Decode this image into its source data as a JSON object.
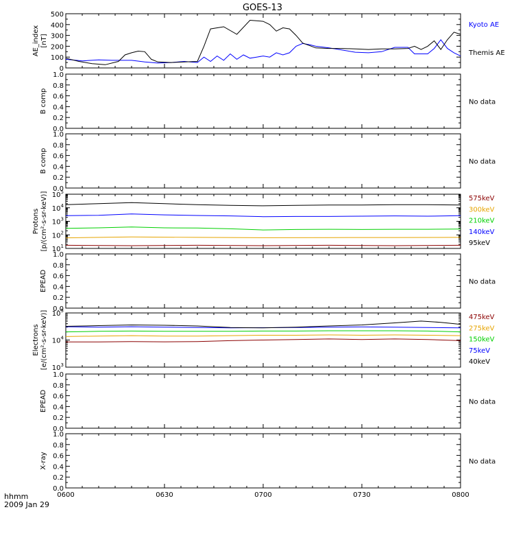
{
  "title": "GOES-13",
  "time_axis": {
    "ticks": [
      "0600",
      "0630",
      "0700",
      "0730",
      "0800"
    ],
    "footer_label": "hhmm",
    "date_label": "2009 Jan 29"
  },
  "no_data_label": "No data",
  "chart_data": [
    {
      "type": "line",
      "ylabel_lines": [
        "AE_index",
        "[nT]"
      ],
      "y_ticks": [
        "0",
        "100",
        "200",
        "300",
        "400",
        "500"
      ],
      "ylim": [
        0,
        500
      ],
      "xlim_minutes": [
        0,
        120
      ],
      "series": [
        {
          "name": "Kyoto AE",
          "color": "#0000ff",
          "x": [
            0,
            5,
            10,
            14,
            20,
            24,
            28,
            32,
            36,
            40,
            42,
            44,
            46,
            48,
            50,
            52,
            54,
            56,
            58,
            60,
            62,
            64,
            66,
            68,
            70,
            72,
            74,
            76,
            80,
            84,
            88,
            92,
            96,
            100,
            104,
            106,
            110,
            112,
            114,
            116,
            118,
            120
          ],
          "y": [
            80,
            65,
            75,
            70,
            70,
            55,
            45,
            50,
            60,
            50,
            100,
            60,
            110,
            70,
            130,
            80,
            120,
            90,
            100,
            110,
            100,
            140,
            120,
            140,
            200,
            225,
            215,
            200,
            185,
            165,
            145,
            140,
            150,
            190,
            190,
            130,
            130,
            180,
            260,
            180,
            140,
            110
          ]
        },
        {
          "name": "Themis AE",
          "color": "#000000",
          "x": [
            0,
            4,
            8,
            12,
            16,
            18,
            20,
            22,
            24,
            26,
            28,
            32,
            36,
            40,
            42,
            44,
            48,
            52,
            56,
            60,
            62,
            64,
            66,
            68,
            70,
            72,
            76,
            80,
            84,
            88,
            92,
            96,
            100,
            104,
            106,
            108,
            110,
            112,
            114,
            116,
            118,
            120
          ],
          "y": [
            90,
            60,
            40,
            30,
            60,
            120,
            140,
            155,
            150,
            80,
            55,
            50,
            55,
            60,
            200,
            360,
            380,
            310,
            440,
            430,
            400,
            340,
            370,
            360,
            300,
            230,
            185,
            180,
            180,
            175,
            170,
            175,
            175,
            180,
            200,
            170,
            200,
            250,
            170,
            260,
            330,
            310
          ]
        }
      ]
    },
    {
      "type": "empty",
      "ylabel_lines": [
        "B comp"
      ],
      "y_ticks": [
        "0.0",
        "0.2",
        "0.4",
        "0.6",
        "0.8",
        "1.0"
      ],
      "ylim": [
        0,
        1
      ]
    },
    {
      "type": "empty",
      "ylabel_lines": [
        "B comp"
      ],
      "y_ticks": [
        "0.0",
        "0.2",
        "0.4",
        "0.6",
        "0.8",
        "1.0"
      ],
      "ylim": [
        0,
        1
      ]
    },
    {
      "type": "line",
      "log_scale": true,
      "ylabel_lines": [
        "Protons",
        "[p/(cm²-s-sr-keV)]"
      ],
      "y_ticks_exponents": [
        1,
        2,
        3,
        4,
        5
      ],
      "ylim": [
        10,
        100000
      ],
      "xlim_minutes": [
        0,
        120
      ],
      "series": [
        {
          "name": "575keV",
          "color": "#8b0000",
          "x": [
            0,
            20,
            40,
            60,
            80,
            100,
            120
          ],
          "y": [
            17,
            16,
            17,
            16,
            17,
            16,
            17
          ]
        },
        {
          "name": "300keV",
          "color": "#e6a400",
          "x": [
            0,
            20,
            40,
            60,
            80,
            100,
            120
          ],
          "y": [
            60,
            70,
            65,
            62,
            63,
            64,
            65
          ]
        },
        {
          "name": "210keV",
          "color": "#00d000",
          "x": [
            0,
            10,
            20,
            30,
            40,
            50,
            60,
            70,
            80,
            90,
            100,
            110,
            120
          ],
          "y": [
            300,
            330,
            380,
            330,
            320,
            280,
            230,
            250,
            260,
            250,
            260,
            260,
            270
          ]
        },
        {
          "name": "140keV",
          "color": "#0000ff",
          "x": [
            0,
            10,
            20,
            30,
            40,
            50,
            60,
            70,
            80,
            90,
            100,
            110,
            120
          ],
          "y": [
            2600,
            2800,
            3500,
            3000,
            2700,
            2500,
            2200,
            2300,
            2300,
            2400,
            2500,
            2400,
            2600
          ]
        },
        {
          "name": "95keV",
          "color": "#000000",
          "x": [
            0,
            10,
            20,
            30,
            40,
            50,
            60,
            70,
            80,
            90,
            100,
            110,
            120
          ],
          "y": [
            17000,
            20000,
            24000,
            20000,
            17000,
            15000,
            14000,
            15000,
            16000,
            16000,
            17000,
            17000,
            16000
          ]
        }
      ]
    },
    {
      "type": "empty",
      "ylabel_lines": [
        "EPEAD"
      ],
      "y_ticks": [
        "0.0",
        "0.2",
        "0.4",
        "0.6",
        "0.8",
        "1.0"
      ],
      "ylim": [
        0,
        1
      ]
    },
    {
      "type": "line",
      "log_scale": true,
      "ylabel_lines": [
        "Electrons",
        "[e/(cm²-s-sr-keV)]"
      ],
      "y_ticks_exponents": [
        3,
        4,
        5
      ],
      "ylim": [
        1000,
        100000
      ],
      "xlim_minutes": [
        0,
        120
      ],
      "series": [
        {
          "name": "475keV",
          "color": "#8b0000",
          "x": [
            0,
            10,
            20,
            30,
            40,
            50,
            60,
            70,
            80,
            90,
            100,
            110,
            120
          ],
          "y": [
            8500,
            8500,
            8800,
            8600,
            8800,
            9500,
            10000,
            10500,
            11000,
            10500,
            11000,
            10500,
            9500
          ]
        },
        {
          "name": "275keV",
          "color": "#e6a400",
          "x": [
            0,
            10,
            20,
            30,
            40,
            50,
            60,
            70,
            80,
            90,
            100,
            110,
            120
          ],
          "y": [
            13500,
            14000,
            14500,
            14000,
            14000,
            14500,
            15000,
            15000,
            15500,
            15000,
            15500,
            15000,
            14500
          ]
        },
        {
          "name": "150keV",
          "color": "#00d000",
          "x": [
            0,
            10,
            20,
            30,
            40,
            50,
            60,
            70,
            80,
            90,
            100,
            110,
            120
          ],
          "y": [
            20000,
            21000,
            21500,
            21000,
            21000,
            21000,
            21500,
            21500,
            22000,
            22000,
            22000,
            21500,
            20000
          ]
        },
        {
          "name": "75keV",
          "color": "#0000ff",
          "x": [
            0,
            10,
            20,
            30,
            40,
            50,
            60,
            70,
            80,
            90,
            100,
            110,
            120
          ],
          "y": [
            31000,
            30000,
            31000,
            30000,
            29000,
            28000,
            28500,
            29000,
            30000,
            30500,
            30000,
            29000,
            28000
          ]
        },
        {
          "name": "40keV",
          "color": "#000000",
          "x": [
            0,
            10,
            20,
            30,
            40,
            50,
            60,
            70,
            80,
            90,
            100,
            108,
            114,
            120
          ],
          "y": [
            32000,
            34000,
            36000,
            35000,
            33000,
            29000,
            28000,
            30000,
            33000,
            36000,
            43000,
            50000,
            45000,
            38000
          ]
        }
      ]
    },
    {
      "type": "empty",
      "ylabel_lines": [
        "EPEAD"
      ],
      "y_ticks": [
        "0.0",
        "0.2",
        "0.4",
        "0.6",
        "0.8",
        "1.0"
      ],
      "ylim": [
        0,
        1
      ]
    },
    {
      "type": "empty",
      "ylabel_lines": [
        "X-ray"
      ],
      "y_ticks": [
        "0.0",
        "0.2",
        "0.4",
        "0.6",
        "0.8",
        "1.0"
      ],
      "ylim": [
        0,
        1
      ]
    }
  ]
}
